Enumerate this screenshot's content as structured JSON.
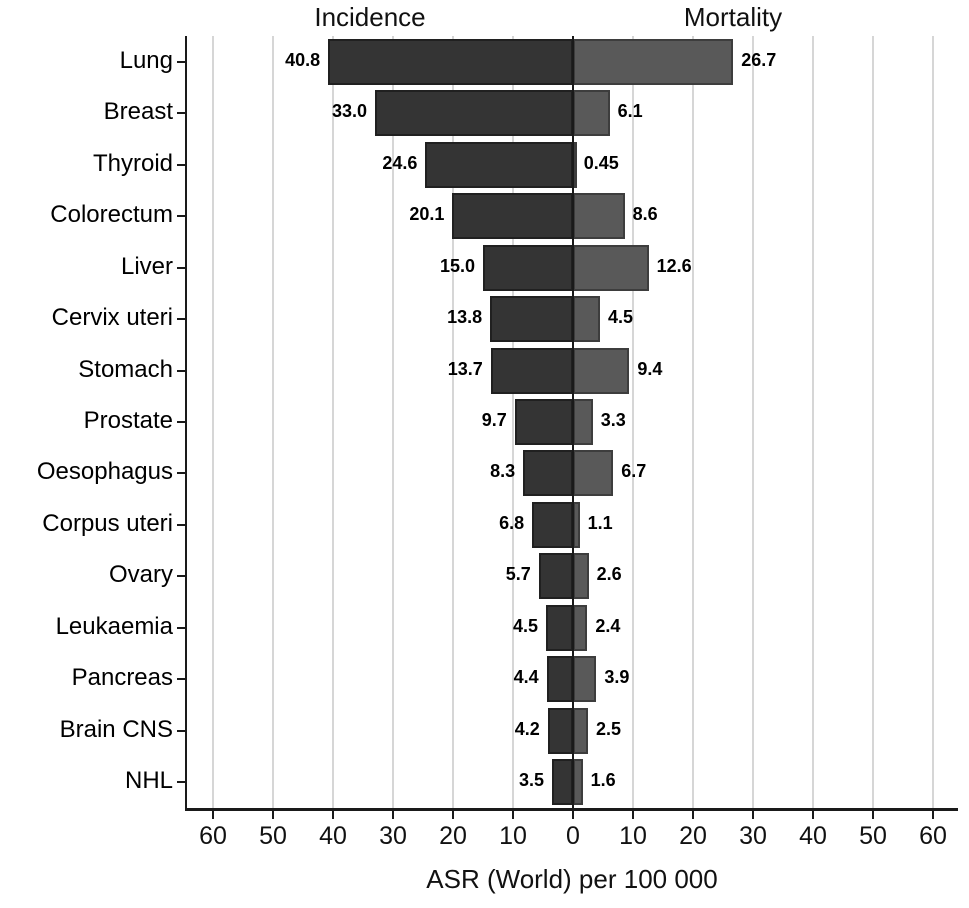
{
  "figure": {
    "left_header": "Incidence",
    "right_header": "Mortality",
    "x_axis_title": "ASR (World) per 100 000"
  },
  "colors": {
    "incidence_fill": "#343434",
    "incidence_border": "#202020",
    "mortality_fill": "#595959",
    "mortality_border": "#3d3d3d",
    "gridline": "#d6d6d6",
    "axis": "#1a1a1a",
    "text": "#000000"
  },
  "chart_data": {
    "type": "bar",
    "variant": "diverging-horizontal",
    "title": "",
    "xlabel": "ASR (World) per 100 000",
    "ylabel": "",
    "grid": true,
    "axis_unit_range": [
      -64,
      64
    ],
    "categories": [
      "Lung",
      "Breast",
      "Thyroid",
      "Colorectum",
      "Liver",
      "Cervix uteri",
      "Stomach",
      "Prostate",
      "Oesophagus",
      "Corpus uteri",
      "Ovary",
      "Leukaemia",
      "Pancreas",
      "Brain CNS",
      "NHL"
    ],
    "series": [
      {
        "name": "Incidence",
        "direction": "left",
        "values": [
          40.8,
          33.0,
          24.6,
          20.1,
          15.0,
          13.8,
          13.7,
          9.7,
          8.3,
          6.8,
          5.7,
          4.5,
          4.4,
          4.2,
          3.5
        ],
        "display": [
          "40.8",
          "33.0",
          "24.6",
          "20.1",
          "15.0",
          "13.8",
          "13.7",
          "9.7",
          "8.3",
          "6.8",
          "5.7",
          "4.5",
          "4.4",
          "4.2",
          "3.5"
        ]
      },
      {
        "name": "Mortality",
        "direction": "right",
        "values": [
          26.7,
          6.1,
          0.45,
          8.6,
          12.6,
          4.5,
          9.4,
          3.3,
          6.7,
          1.1,
          2.6,
          2.4,
          3.9,
          2.5,
          1.6
        ],
        "display": [
          "26.7",
          "6.1",
          "0.45",
          "8.6",
          "12.6",
          "4.5",
          "9.4",
          "3.3",
          "6.7",
          "1.1",
          "2.6",
          "2.4",
          "3.9",
          "2.5",
          "1.6"
        ]
      }
    ],
    "x_tick_labels": [
      "60",
      "50",
      "40",
      "30",
      "20",
      "10",
      "0",
      "10",
      "20",
      "30",
      "40",
      "50",
      "60"
    ]
  }
}
